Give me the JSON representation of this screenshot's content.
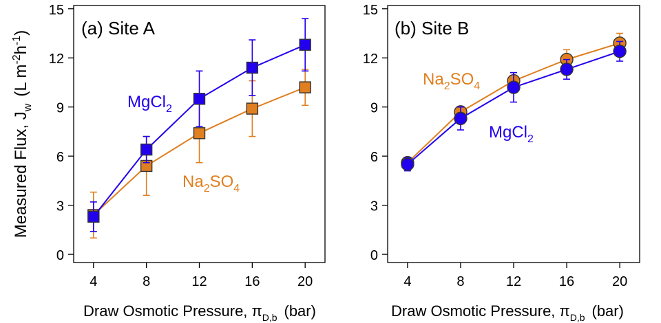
{
  "colors": {
    "mgcl2": "#2200ee",
    "na2so4": "#e07f1f",
    "marker_edge": "#333333",
    "axis": "#000000"
  },
  "shared": {
    "ylabel_main": "Measured Flux, J",
    "ylabel_sub": "w",
    "ylabel_units": "(L m",
    "ylabel_units_exp1": "-2",
    "ylabel_units_mid": "h",
    "ylabel_units_exp2": "-1",
    "ylabel_units_close": ")",
    "xlabel_main": "Draw Osmotic Pressure, π",
    "xlabel_sub": "D,b",
    "xlabel_units": "(bar)"
  },
  "chart_data": [
    {
      "type": "line",
      "title": "(a) Site A",
      "marker": "square",
      "xlim": [
        2.5,
        21.5
      ],
      "ylim": [
        -0.5,
        15.2
      ],
      "xticks": [
        4,
        8,
        12,
        16,
        20
      ],
      "yticks": [
        0,
        3,
        6,
        9,
        12,
        15
      ],
      "x": [
        4,
        8,
        12,
        16,
        20
      ],
      "series": [
        {
          "name": "Na2SO4",
          "label_main": "Na",
          "label_sub1": "2",
          "label_mid": "SO",
          "label_sub2": "4",
          "values": [
            2.4,
            5.4,
            7.4,
            8.9,
            10.2
          ],
          "err": [
            1.4,
            1.8,
            1.8,
            1.7,
            1.1
          ]
        },
        {
          "name": "MgCl2",
          "label_main": "MgCl",
          "label_sub1": "2",
          "label_mid": "",
          "label_sub2": "",
          "values": [
            2.3,
            6.4,
            9.5,
            11.4,
            12.8
          ],
          "err": [
            0.9,
            0.8,
            1.7,
            1.7,
            1.6
          ]
        }
      ]
    },
    {
      "type": "line",
      "title": "(b) Site B",
      "marker": "circle",
      "xlim": [
        2.5,
        21.5
      ],
      "ylim": [
        -0.5,
        15.2
      ],
      "xticks": [
        4,
        8,
        12,
        16,
        20
      ],
      "yticks": [
        0,
        3,
        6,
        9,
        12,
        15
      ],
      "x": [
        4,
        8,
        12,
        16,
        20
      ],
      "series": [
        {
          "name": "Na2SO4",
          "label_main": "Na",
          "label_sub1": "2",
          "label_mid": "SO",
          "label_sub2": "4",
          "values": [
            5.6,
            8.7,
            10.6,
            11.9,
            12.9
          ],
          "err": [
            0.3,
            0.3,
            0.5,
            0.6,
            0.6
          ]
        },
        {
          "name": "MgCl2",
          "label_main": "MgCl",
          "label_sub1": "2",
          "label_mid": "",
          "label_sub2": "",
          "values": [
            5.5,
            8.3,
            10.2,
            11.3,
            12.4
          ],
          "err": [
            0.4,
            0.7,
            0.9,
            0.6,
            0.6
          ]
        }
      ]
    }
  ]
}
